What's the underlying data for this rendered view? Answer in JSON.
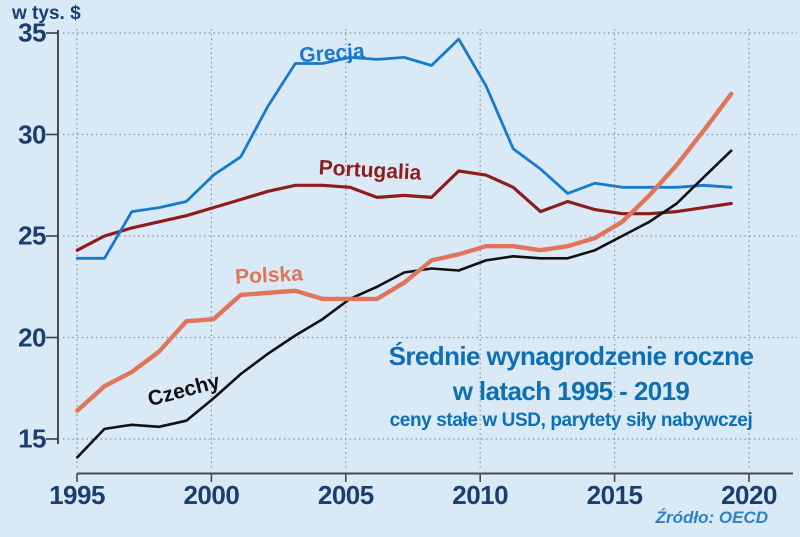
{
  "page": {
    "background": "#d9e9f6"
  },
  "chart_data": {
    "type": "line",
    "title_lines": [
      "Średnie wynagrodzenie roczne",
      "w latach 1995 - 2019"
    ],
    "subtitle": "ceny stałe w USD, parytety siły nabywczej",
    "ylabel": "w tys. $",
    "source": "Źródło: OECD",
    "x": [
      1995,
      1996,
      1997,
      1998,
      1999,
      2000,
      2001,
      2002,
      2003,
      2004,
      2005,
      2006,
      2007,
      2008,
      2009,
      2010,
      2011,
      2012,
      2013,
      2014,
      2015,
      2016,
      2017,
      2018,
      2019
    ],
    "x_ticks": [
      1995,
      2000,
      2005,
      2010,
      2015,
      2020
    ],
    "y_ticks": [
      35,
      30,
      25,
      20,
      15
    ],
    "xlim": [
      1995,
      2020
    ],
    "ylim": [
      13,
      35.7
    ],
    "grid": "dotted",
    "legend": "inline-labels",
    "axis_color": "#1b3e70",
    "title_color": "#0e6fb4",
    "grid_color": "#7b8a98",
    "series": [
      {
        "name": "Portugalia",
        "color": "#8e1c1c",
        "width": 3.2,
        "values": [
          24.3,
          25.0,
          25.4,
          25.7,
          26.0,
          26.4,
          26.8,
          27.2,
          27.5,
          27.5,
          27.4,
          26.9,
          27.0,
          26.9,
          28.2,
          28.0,
          27.4,
          26.2,
          26.7,
          26.3,
          26.1,
          26.1,
          26.2,
          26.4,
          26.6
        ]
      },
      {
        "name": "Grecja",
        "color": "#187acd",
        "width": 2.8,
        "values": [
          23.9,
          23.9,
          26.2,
          26.4,
          26.7,
          28.0,
          28.9,
          31.4,
          33.5,
          33.5,
          33.8,
          33.7,
          33.8,
          33.4,
          34.7,
          32.4,
          29.3,
          28.3,
          27.1,
          27.6,
          27.4,
          27.4,
          27.4,
          27.5,
          27.4
        ]
      },
      {
        "name": "Czechy",
        "color": "#111111",
        "width": 2.6,
        "values": [
          14.1,
          15.5,
          15.7,
          15.6,
          15.9,
          17.0,
          18.2,
          19.2,
          20.1,
          20.9,
          21.9,
          22.5,
          23.2,
          23.4,
          23.3,
          23.8,
          24.0,
          23.9,
          23.9,
          24.3,
          25.0,
          25.7,
          26.6,
          27.9,
          29.2
        ]
      },
      {
        "name": "Polska",
        "color": "#e0755c",
        "width": 4.4,
        "values": [
          16.4,
          17.6,
          18.3,
          19.3,
          20.8,
          20.9,
          22.1,
          22.2,
          22.3,
          21.9,
          21.9,
          21.9,
          22.7,
          23.8,
          24.1,
          24.5,
          24.5,
          24.3,
          24.5,
          24.9,
          25.7,
          27.0,
          28.5,
          30.2,
          32.0
        ]
      }
    ]
  }
}
